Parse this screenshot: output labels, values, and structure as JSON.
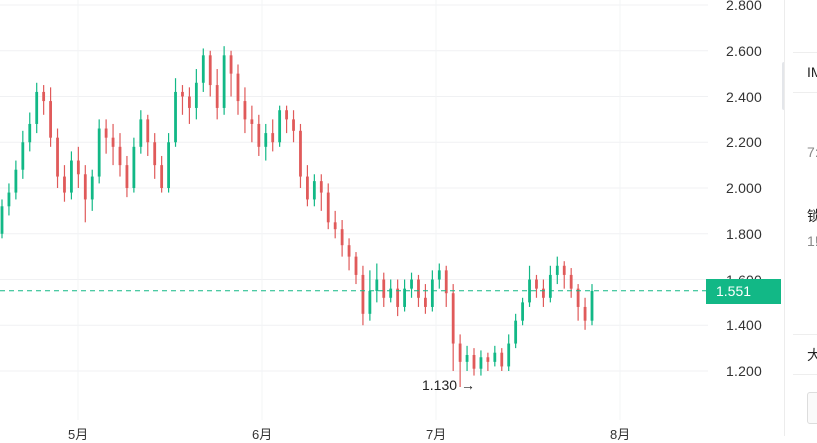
{
  "chart_data": {
    "type": "candlestick",
    "y_ticks": [
      "2.800",
      "2.600",
      "2.400",
      "2.200",
      "2.000",
      "1.800",
      "1.600",
      "1.400",
      "1.200"
    ],
    "ylim": [
      1.0,
      2.8
    ],
    "x_ticks": [
      "5月",
      "6月",
      "7月",
      "8月"
    ],
    "current_price": "1.551",
    "low_marker": {
      "value": "1.130",
      "arrow": "→"
    },
    "up_color": "#12b886",
    "down_color": "#e05a5a",
    "reference_line_color": "#12b886",
    "grid": true,
    "candles": [
      [
        1.8,
        1.92,
        1.78,
        1.95
      ],
      [
        1.92,
        1.98,
        1.88,
        2.02
      ],
      [
        1.98,
        2.08,
        1.95,
        2.12
      ],
      [
        2.08,
        2.2,
        2.04,
        2.25
      ],
      [
        2.2,
        2.28,
        2.16,
        2.33
      ],
      [
        2.28,
        2.42,
        2.24,
        2.46
      ],
      [
        2.42,
        2.38,
        2.32,
        2.45
      ],
      [
        2.38,
        2.22,
        2.18,
        2.44
      ],
      [
        2.22,
        2.05,
        2.0,
        2.26
      ],
      [
        2.05,
        1.98,
        1.94,
        2.1
      ],
      [
        1.98,
        2.12,
        1.95,
        2.16
      ],
      [
        2.12,
        2.06,
        2.0,
        2.18
      ],
      [
        2.06,
        1.95,
        1.85,
        2.1
      ],
      [
        1.95,
        2.05,
        1.9,
        2.08
      ],
      [
        2.05,
        2.26,
        2.02,
        2.3
      ],
      [
        2.26,
        2.22,
        2.15,
        2.3
      ],
      [
        2.22,
        2.18,
        2.1,
        2.28
      ],
      [
        2.18,
        2.1,
        2.05,
        2.24
      ],
      [
        2.1,
        2.0,
        1.96,
        2.14
      ],
      [
        2.0,
        2.18,
        1.98,
        2.22
      ],
      [
        2.18,
        2.3,
        2.15,
        2.34
      ],
      [
        2.3,
        2.2,
        2.14,
        2.32
      ],
      [
        2.2,
        2.1,
        2.04,
        2.24
      ],
      [
        2.1,
        2.0,
        1.98,
        2.14
      ],
      [
        2.0,
        2.2,
        1.98,
        2.24
      ],
      [
        2.2,
        2.42,
        2.18,
        2.48
      ],
      [
        2.42,
        2.4,
        2.32,
        2.45
      ],
      [
        2.4,
        2.35,
        2.28,
        2.44
      ],
      [
        2.35,
        2.46,
        2.3,
        2.52
      ],
      [
        2.46,
        2.58,
        2.42,
        2.61
      ],
      [
        2.58,
        2.45,
        2.4,
        2.6
      ],
      [
        2.45,
        2.35,
        2.3,
        2.52
      ],
      [
        2.35,
        2.58,
        2.32,
        2.62
      ],
      [
        2.58,
        2.5,
        2.4,
        2.6
      ],
      [
        2.5,
        2.38,
        2.32,
        2.54
      ],
      [
        2.38,
        2.3,
        2.24,
        2.44
      ],
      [
        2.3,
        2.28,
        2.2,
        2.36
      ],
      [
        2.28,
        2.18,
        2.14,
        2.32
      ],
      [
        2.18,
        2.24,
        2.12,
        2.28
      ],
      [
        2.24,
        2.2,
        2.16,
        2.3
      ],
      [
        2.2,
        2.34,
        2.18,
        2.36
      ],
      [
        2.34,
        2.3,
        2.24,
        2.36
      ],
      [
        2.3,
        2.25,
        2.2,
        2.34
      ],
      [
        2.25,
        2.05,
        2.0,
        2.28
      ],
      [
        2.05,
        1.95,
        1.92,
        2.1
      ],
      [
        1.95,
        2.03,
        1.92,
        2.06
      ],
      [
        2.03,
        1.98,
        1.9,
        2.06
      ],
      [
        1.98,
        1.85,
        1.82,
        2.02
      ],
      [
        1.85,
        1.82,
        1.78,
        1.9
      ],
      [
        1.82,
        1.75,
        1.7,
        1.86
      ],
      [
        1.75,
        1.7,
        1.64,
        1.78
      ],
      [
        1.7,
        1.62,
        1.58,
        1.72
      ],
      [
        1.62,
        1.45,
        1.4,
        1.66
      ],
      [
        1.45,
        1.55,
        1.42,
        1.64
      ],
      [
        1.55,
        1.6,
        1.5,
        1.67
      ],
      [
        1.6,
        1.52,
        1.48,
        1.63
      ],
      [
        1.52,
        1.56,
        1.5,
        1.6
      ],
      [
        1.56,
        1.48,
        1.44,
        1.6
      ],
      [
        1.48,
        1.56,
        1.46,
        1.6
      ],
      [
        1.56,
        1.6,
        1.52,
        1.63
      ],
      [
        1.6,
        1.52,
        1.48,
        1.62
      ],
      [
        1.52,
        1.48,
        1.45,
        1.58
      ],
      [
        1.48,
        1.6,
        1.46,
        1.64
      ],
      [
        1.6,
        1.64,
        1.56,
        1.67
      ],
      [
        1.64,
        1.54,
        1.48,
        1.66
      ],
      [
        1.54,
        1.32,
        1.2,
        1.58
      ],
      [
        1.32,
        1.24,
        1.13,
        1.36
      ],
      [
        1.24,
        1.27,
        1.2,
        1.31
      ],
      [
        1.27,
        1.21,
        1.18,
        1.3
      ],
      [
        1.21,
        1.26,
        1.18,
        1.29
      ],
      [
        1.26,
        1.24,
        1.2,
        1.28
      ],
      [
        1.24,
        1.28,
        1.22,
        1.31
      ],
      [
        1.28,
        1.22,
        1.2,
        1.3
      ],
      [
        1.22,
        1.32,
        1.2,
        1.36
      ],
      [
        1.32,
        1.42,
        1.3,
        1.45
      ],
      [
        1.42,
        1.5,
        1.4,
        1.52
      ],
      [
        1.5,
        1.6,
        1.48,
        1.66
      ],
      [
        1.6,
        1.56,
        1.52,
        1.62
      ],
      [
        1.56,
        1.52,
        1.48,
        1.6
      ],
      [
        1.52,
        1.62,
        1.5,
        1.66
      ],
      [
        1.62,
        1.66,
        1.58,
        1.7
      ],
      [
        1.66,
        1.62,
        1.56,
        1.68
      ],
      [
        1.62,
        1.56,
        1.52,
        1.65
      ],
      [
        1.56,
        1.48,
        1.42,
        1.58
      ],
      [
        1.48,
        1.42,
        1.38,
        1.52
      ],
      [
        1.42,
        1.55,
        1.4,
        1.58
      ]
    ]
  },
  "right_panel": {
    "header": "IM",
    "line1": "",
    "line2": "7:",
    "line3": "",
    "line4": "锁",
    "line5": "1!",
    "line6": "大"
  }
}
